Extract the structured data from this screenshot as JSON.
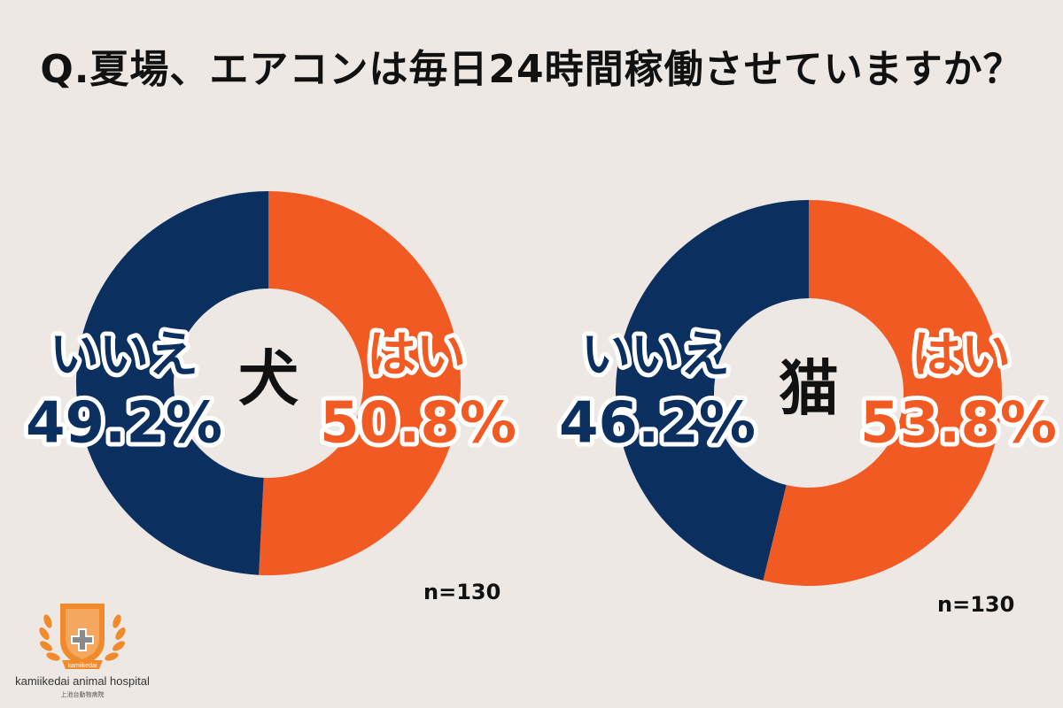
{
  "title": "Q.夏場、エアコンは毎日24時間稼働させていますか？",
  "colors": {
    "yes": "#f15a22",
    "no": "#0b3060",
    "background": "#ede8e4"
  },
  "chart_data": [
    {
      "type": "pie",
      "center_label": "犬",
      "categories": [
        "はい",
        "いいえ"
      ],
      "values": [
        50.8,
        49.2
      ],
      "value_labels": [
        "50.8%",
        "49.2%"
      ],
      "n_label": "n=130"
    },
    {
      "type": "pie",
      "center_label": "猫",
      "categories": [
        "はい",
        "いいえ"
      ],
      "values": [
        53.8,
        46.2
      ],
      "value_labels": [
        "53.8%",
        "46.2%"
      ],
      "n_label": "n=130"
    }
  ],
  "logo": {
    "name": "kamiikedai animal hospital",
    "sub": "上池台動物病院",
    "badge_text": "kamiikedai"
  }
}
